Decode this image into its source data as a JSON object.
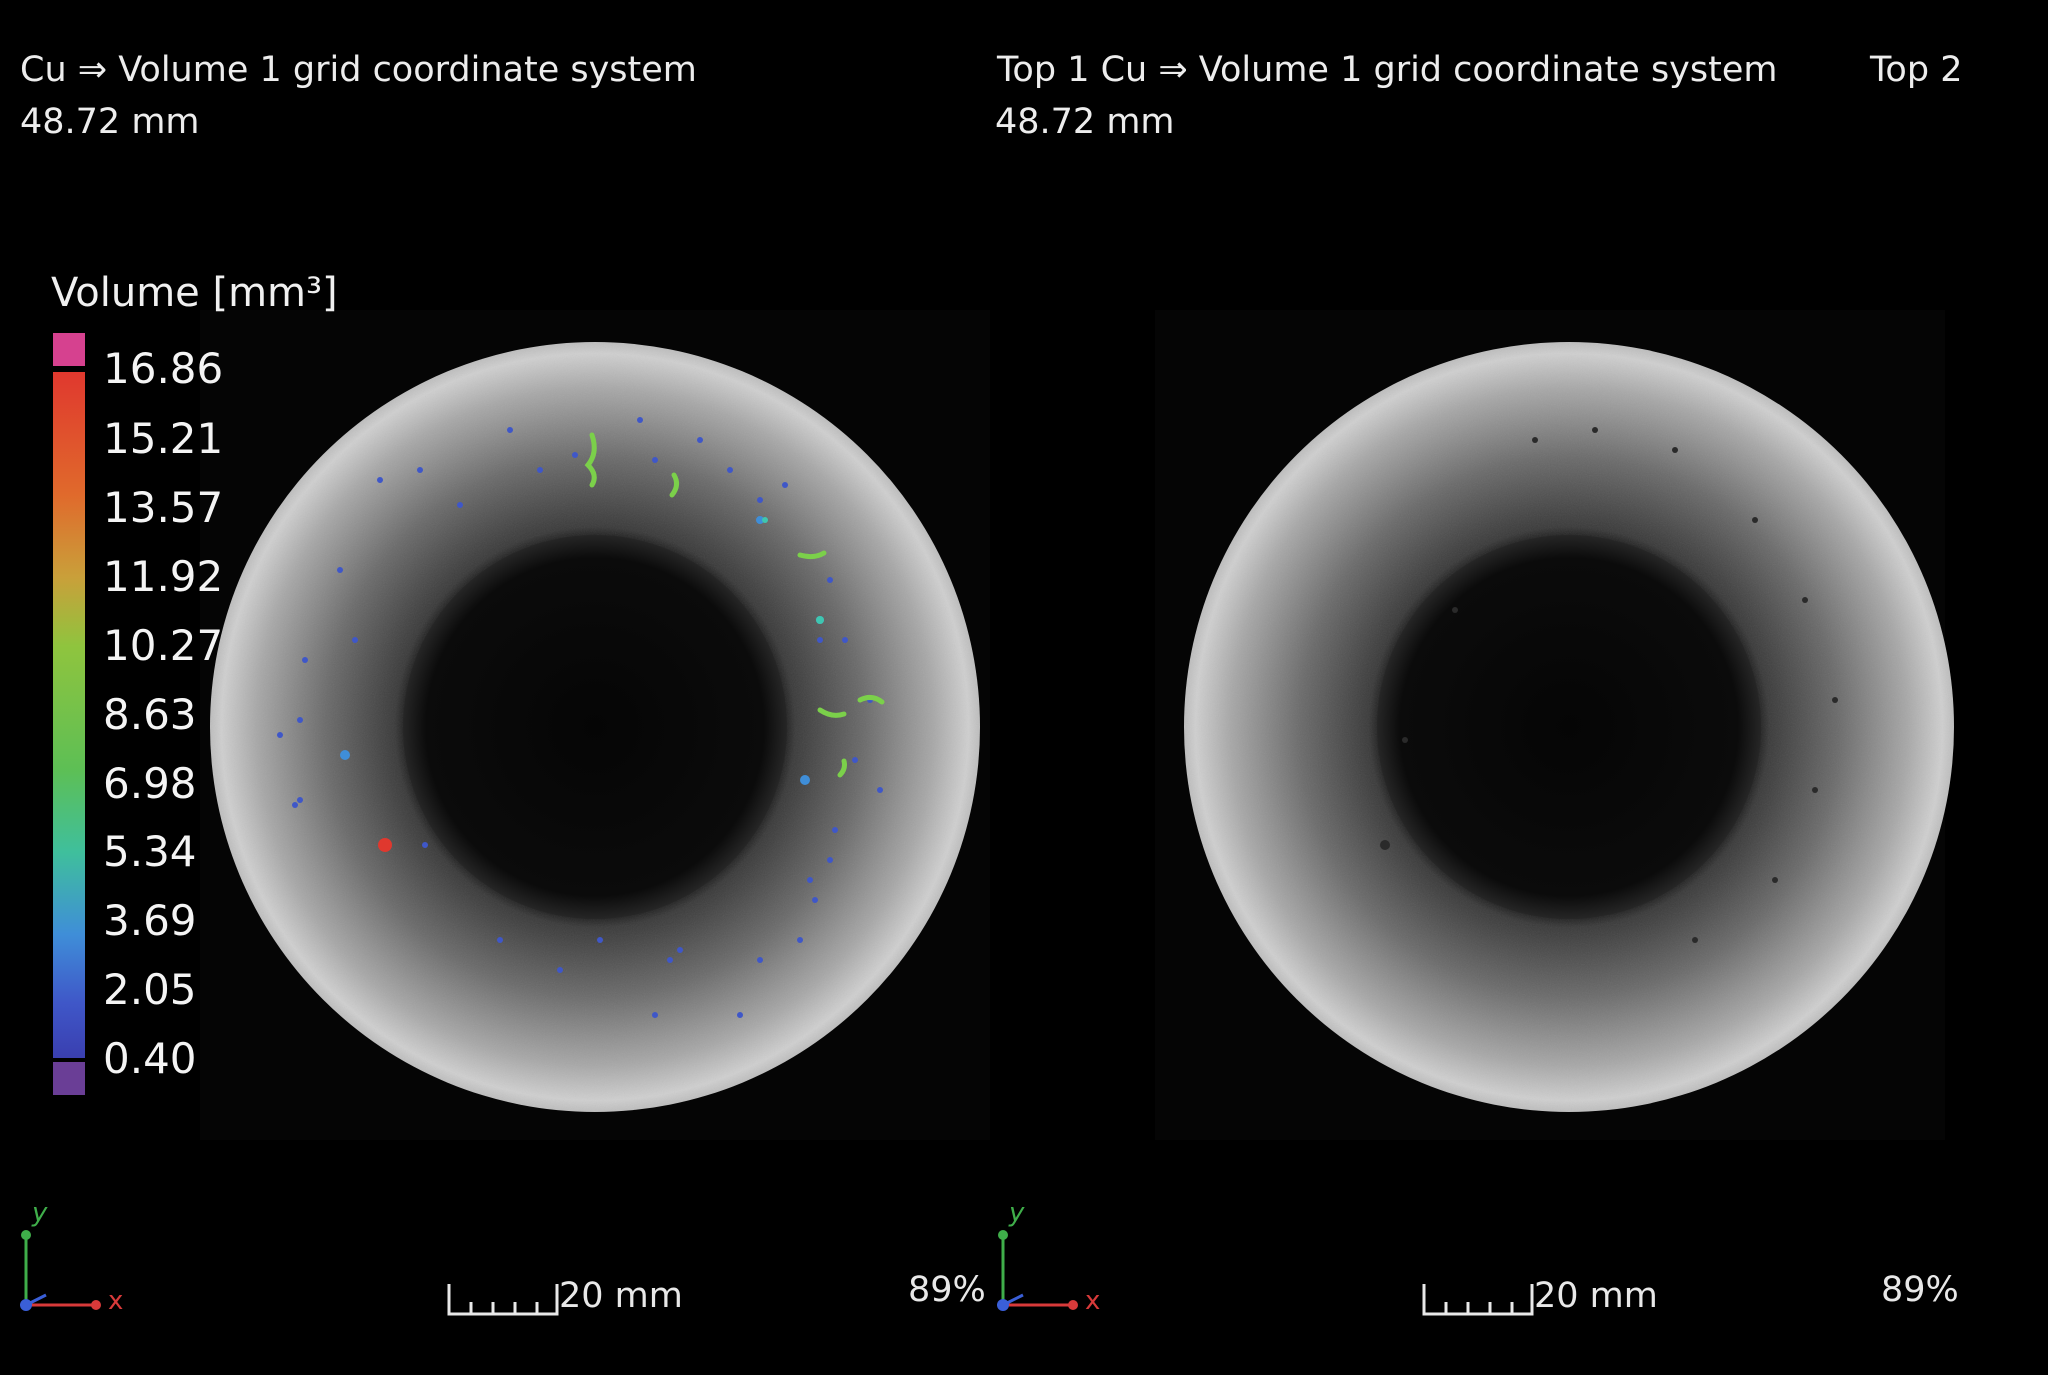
{
  "left_view": {
    "title": "Cu ⇒ Volume 1 grid coordinate system",
    "distance": "48.72 mm",
    "legend": {
      "title": "Volume [mm³]",
      "ticks": [
        "16.86",
        "15.21",
        "13.57",
        "11.92",
        "10.27",
        "8.63",
        "6.98",
        "5.34",
        "3.69",
        "2.05",
        "0.40"
      ],
      "overflow_high_color": "#d6418f",
      "overflow_low_color": "#6a3e96"
    },
    "scale_label": "20 mm",
    "zoom": "89%"
  },
  "right_view": {
    "title": "Top 1 Cu ⇒ Volume 1 grid coordinate system",
    "distance": "48.72 mm",
    "scale_label": "20 mm",
    "zoom": "89%"
  },
  "top_right_label": "Top 2",
  "axis_labels": {
    "x": "x",
    "y": "y"
  },
  "colors": {
    "background": "#000000",
    "axis_x": "#d83a3a",
    "axis_y": "#3fae4a",
    "axis_z": "#3a5fd8"
  }
}
